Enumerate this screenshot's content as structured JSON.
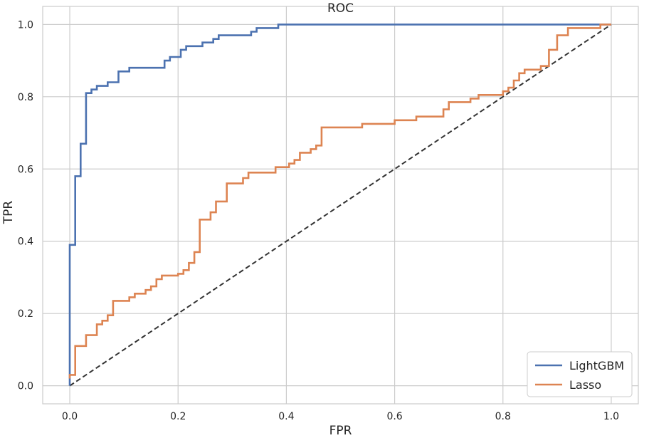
{
  "chart_data": {
    "type": "line",
    "title": "ROC",
    "xlabel": "FPR",
    "ylabel": "TPR",
    "xlim": [
      -0.05,
      1.05
    ],
    "ylim": [
      -0.05,
      1.05
    ],
    "xticks": [
      "0.0",
      "0.2",
      "0.4",
      "0.6",
      "0.8",
      "1.0"
    ],
    "yticks": [
      "0.0",
      "0.2",
      "0.4",
      "0.6",
      "0.8",
      "1.0"
    ],
    "grid": true,
    "legend": "lower-right",
    "series": [
      {
        "name": "LightGBM",
        "color": "#4c72b0",
        "steps": [
          [
            0.0,
            0.0
          ],
          [
            0.0,
            0.39
          ],
          [
            0.01,
            0.39
          ],
          [
            0.01,
            0.58
          ],
          [
            0.02,
            0.58
          ],
          [
            0.02,
            0.67
          ],
          [
            0.03,
            0.67
          ],
          [
            0.03,
            0.81
          ],
          [
            0.04,
            0.81
          ],
          [
            0.04,
            0.82
          ],
          [
            0.05,
            0.82
          ],
          [
            0.05,
            0.83
          ],
          [
            0.07,
            0.83
          ],
          [
            0.07,
            0.84
          ],
          [
            0.09,
            0.84
          ],
          [
            0.09,
            0.87
          ],
          [
            0.11,
            0.87
          ],
          [
            0.11,
            0.88
          ],
          [
            0.175,
            0.88
          ],
          [
            0.175,
            0.9
          ],
          [
            0.185,
            0.9
          ],
          [
            0.185,
            0.91
          ],
          [
            0.205,
            0.91
          ],
          [
            0.205,
            0.93
          ],
          [
            0.215,
            0.93
          ],
          [
            0.215,
            0.94
          ],
          [
            0.245,
            0.94
          ],
          [
            0.245,
            0.95
          ],
          [
            0.265,
            0.95
          ],
          [
            0.265,
            0.96
          ],
          [
            0.275,
            0.96
          ],
          [
            0.275,
            0.97
          ],
          [
            0.335,
            0.97
          ],
          [
            0.335,
            0.98
          ],
          [
            0.345,
            0.98
          ],
          [
            0.345,
            0.99
          ],
          [
            0.385,
            0.99
          ],
          [
            0.385,
            1.0
          ],
          [
            1.0,
            1.0
          ]
        ]
      },
      {
        "name": "Lasso",
        "color": "#dd8452",
        "steps": [
          [
            0.0,
            0.02
          ],
          [
            0.0,
            0.03
          ],
          [
            0.01,
            0.03
          ],
          [
            0.01,
            0.11
          ],
          [
            0.03,
            0.11
          ],
          [
            0.03,
            0.14
          ],
          [
            0.05,
            0.14
          ],
          [
            0.05,
            0.17
          ],
          [
            0.06,
            0.17
          ],
          [
            0.06,
            0.18
          ],
          [
            0.07,
            0.18
          ],
          [
            0.07,
            0.195
          ],
          [
            0.08,
            0.195
          ],
          [
            0.08,
            0.235
          ],
          [
            0.11,
            0.235
          ],
          [
            0.11,
            0.245
          ],
          [
            0.12,
            0.245
          ],
          [
            0.12,
            0.255
          ],
          [
            0.14,
            0.255
          ],
          [
            0.14,
            0.265
          ],
          [
            0.15,
            0.265
          ],
          [
            0.15,
            0.275
          ],
          [
            0.16,
            0.275
          ],
          [
            0.16,
            0.295
          ],
          [
            0.17,
            0.295
          ],
          [
            0.17,
            0.305
          ],
          [
            0.2,
            0.305
          ],
          [
            0.2,
            0.31
          ],
          [
            0.21,
            0.31
          ],
          [
            0.21,
            0.32
          ],
          [
            0.22,
            0.32
          ],
          [
            0.22,
            0.34
          ],
          [
            0.23,
            0.34
          ],
          [
            0.23,
            0.37
          ],
          [
            0.24,
            0.37
          ],
          [
            0.24,
            0.46
          ],
          [
            0.26,
            0.46
          ],
          [
            0.26,
            0.48
          ],
          [
            0.27,
            0.48
          ],
          [
            0.27,
            0.51
          ],
          [
            0.29,
            0.51
          ],
          [
            0.29,
            0.56
          ],
          [
            0.32,
            0.56
          ],
          [
            0.32,
            0.575
          ],
          [
            0.33,
            0.575
          ],
          [
            0.33,
            0.59
          ],
          [
            0.38,
            0.59
          ],
          [
            0.38,
            0.605
          ],
          [
            0.405,
            0.605
          ],
          [
            0.405,
            0.615
          ],
          [
            0.415,
            0.615
          ],
          [
            0.415,
            0.625
          ],
          [
            0.425,
            0.625
          ],
          [
            0.425,
            0.645
          ],
          [
            0.445,
            0.645
          ],
          [
            0.445,
            0.655
          ],
          [
            0.455,
            0.655
          ],
          [
            0.455,
            0.665
          ],
          [
            0.465,
            0.665
          ],
          [
            0.465,
            0.715
          ],
          [
            0.54,
            0.715
          ],
          [
            0.54,
            0.725
          ],
          [
            0.6,
            0.725
          ],
          [
            0.6,
            0.735
          ],
          [
            0.64,
            0.735
          ],
          [
            0.64,
            0.745
          ],
          [
            0.69,
            0.745
          ],
          [
            0.69,
            0.765
          ],
          [
            0.7,
            0.765
          ],
          [
            0.7,
            0.785
          ],
          [
            0.74,
            0.785
          ],
          [
            0.74,
            0.795
          ],
          [
            0.755,
            0.795
          ],
          [
            0.755,
            0.805
          ],
          [
            0.8,
            0.805
          ],
          [
            0.8,
            0.815
          ],
          [
            0.81,
            0.815
          ],
          [
            0.81,
            0.825
          ],
          [
            0.82,
            0.825
          ],
          [
            0.82,
            0.845
          ],
          [
            0.83,
            0.845
          ],
          [
            0.83,
            0.865
          ],
          [
            0.84,
            0.865
          ],
          [
            0.84,
            0.875
          ],
          [
            0.87,
            0.875
          ],
          [
            0.87,
            0.885
          ],
          [
            0.885,
            0.885
          ],
          [
            0.885,
            0.93
          ],
          [
            0.9,
            0.93
          ],
          [
            0.9,
            0.97
          ],
          [
            0.92,
            0.97
          ],
          [
            0.92,
            0.99
          ],
          [
            0.98,
            0.99
          ],
          [
            0.98,
            1.0
          ],
          [
            1.0,
            1.0
          ]
        ]
      }
    ],
    "reference_line": {
      "points": [
        [
          0.0,
          0.0
        ],
        [
          1.0,
          1.0
        ]
      ],
      "style": "dashed",
      "color": "#333333"
    }
  }
}
